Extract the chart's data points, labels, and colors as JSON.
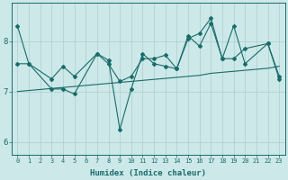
{
  "xlabel": "Humidex (Indice chaleur)",
  "bg_color": "#cce8e8",
  "line_color": "#1a6b6b",
  "grid_color": "#aecece",
  "xlim": [
    -0.5,
    23.5
  ],
  "ylim": [
    5.75,
    8.75
  ],
  "xticks": [
    0,
    1,
    2,
    3,
    4,
    5,
    6,
    7,
    8,
    9,
    10,
    11,
    12,
    13,
    14,
    15,
    16,
    17,
    18,
    19,
    20,
    21,
    22,
    23
  ],
  "yticks": [
    6,
    7,
    8
  ],
  "series1_x": [
    0,
    1,
    3,
    4,
    5,
    7,
    8,
    9,
    10,
    11,
    12,
    13,
    14,
    15,
    16,
    17,
    18,
    19,
    20,
    22,
    23
  ],
  "series1_y": [
    8.3,
    7.55,
    7.05,
    7.05,
    6.95,
    7.75,
    7.62,
    6.25,
    7.05,
    7.75,
    7.55,
    7.5,
    7.45,
    8.1,
    7.9,
    8.35,
    7.65,
    8.3,
    7.55,
    7.95,
    7.3
  ],
  "series2_x": [
    0,
    1,
    3,
    4,
    5,
    7,
    8,
    9,
    10,
    11,
    12,
    13,
    14,
    15,
    16,
    17,
    18,
    19,
    20,
    22,
    23
  ],
  "series2_y": [
    7.55,
    7.55,
    7.25,
    7.5,
    7.3,
    7.75,
    7.55,
    7.2,
    7.3,
    7.65,
    7.65,
    7.72,
    7.45,
    8.05,
    8.15,
    8.45,
    7.65,
    7.65,
    7.85,
    7.95,
    7.25
  ],
  "series3_x": [
    0,
    1,
    2,
    3,
    4,
    5,
    6,
    7,
    8,
    9,
    10,
    11,
    12,
    13,
    14,
    15,
    16,
    17,
    18,
    19,
    20,
    21,
    22,
    23
  ],
  "series3_y": [
    7.0,
    7.02,
    7.04,
    7.06,
    7.08,
    7.1,
    7.12,
    7.14,
    7.16,
    7.18,
    7.2,
    7.22,
    7.24,
    7.26,
    7.28,
    7.3,
    7.32,
    7.36,
    7.38,
    7.4,
    7.42,
    7.44,
    7.46,
    7.5
  ]
}
